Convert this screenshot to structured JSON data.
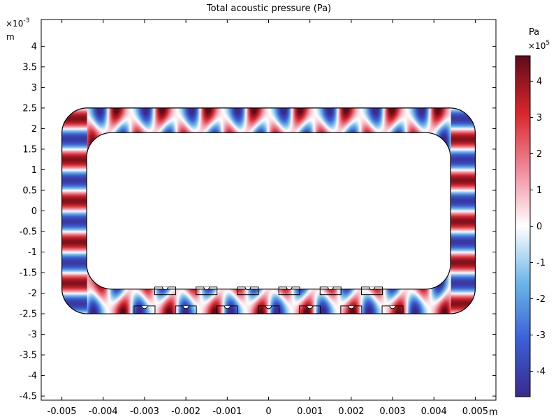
{
  "chart_data": {
    "type": "heatmap",
    "title": "Total acoustic pressure (Pa)",
    "x_unit": "m",
    "y_unit": "m",
    "y_exponent_label": "×10",
    "y_exponent_power": "-3",
    "xlim": [
      -0.0055,
      0.0055
    ],
    "ylim": [
      -4.6,
      4.65
    ],
    "x_ticks": [
      {
        "v": -0.005,
        "label": "-0.005"
      },
      {
        "v": -0.004,
        "label": "-0.004"
      },
      {
        "v": -0.003,
        "label": "-0.003"
      },
      {
        "v": -0.002,
        "label": "-0.002"
      },
      {
        "v": -0.001,
        "label": "-0.001"
      },
      {
        "v": 0,
        "label": "0"
      },
      {
        "v": 0.001,
        "label": "0.001"
      },
      {
        "v": 0.002,
        "label": "0.002"
      },
      {
        "v": 0.003,
        "label": "0.003"
      },
      {
        "v": 0.004,
        "label": "0.004"
      },
      {
        "v": 0.005,
        "label": "0.005"
      }
    ],
    "y_ticks": [
      {
        "v": 4,
        "label": "4"
      },
      {
        "v": 3.5,
        "label": "3.5"
      },
      {
        "v": 3,
        "label": "3"
      },
      {
        "v": 2.5,
        "label": "2.5"
      },
      {
        "v": 2,
        "label": "2"
      },
      {
        "v": 1.5,
        "label": "1.5"
      },
      {
        "v": 1,
        "label": "1"
      },
      {
        "v": 0.5,
        "label": "0.5"
      },
      {
        "v": 0,
        "label": "0"
      },
      {
        "v": -0.5,
        "label": "-0.5"
      },
      {
        "v": -1,
        "label": "-1"
      },
      {
        "v": -1.5,
        "label": "-1.5"
      },
      {
        "v": -2,
        "label": "-2"
      },
      {
        "v": -2.5,
        "label": "-2.5"
      },
      {
        "v": -3,
        "label": "-3"
      },
      {
        "v": -3.5,
        "label": "-3.5"
      },
      {
        "v": -4,
        "label": "-4"
      },
      {
        "v": -4.5,
        "label": "-4.5"
      }
    ],
    "domain": {
      "outer": {
        "x": [
          -0.005,
          0.005
        ],
        "y": [
          -2.5,
          2.5
        ],
        "corner_radius": 0.00062
      },
      "inner": {
        "x": [
          -0.0044,
          0.0044
        ],
        "y": [
          -1.9,
          1.9
        ],
        "corner_radius": 0.0006
      },
      "slots_upper_row_x": [
        -0.0025,
        -0.0015,
        -0.0005,
        0.0005,
        0.0015,
        0.0025
      ],
      "slots_lower_row_x": [
        -0.003,
        -0.002,
        -0.001,
        0.0,
        0.001,
        0.002,
        0.003
      ]
    },
    "field": {
      "kx_periods": 18,
      "ky_periods": 3
    },
    "colorbar": {
      "label": "Pa",
      "scale_base": "×10",
      "scale_power": "5",
      "range": [
        -4.7,
        4.7
      ],
      "ticks": [
        {
          "v": 4,
          "label": "4"
        },
        {
          "v": 3,
          "label": "3"
        },
        {
          "v": 2,
          "label": "2"
        },
        {
          "v": 1,
          "label": "1"
        },
        {
          "v": 0,
          "label": "0"
        },
        {
          "v": -1,
          "label": "-1"
        },
        {
          "v": -2,
          "label": "-2"
        },
        {
          "v": -3,
          "label": "-3"
        },
        {
          "v": -4,
          "label": "-4"
        }
      ],
      "colormap": [
        "#3a2a8c",
        "#3b5fd6",
        "#6bb6e8",
        "#ffffff",
        "#f08a9c",
        "#d8262a",
        "#5e0b1a"
      ]
    }
  }
}
